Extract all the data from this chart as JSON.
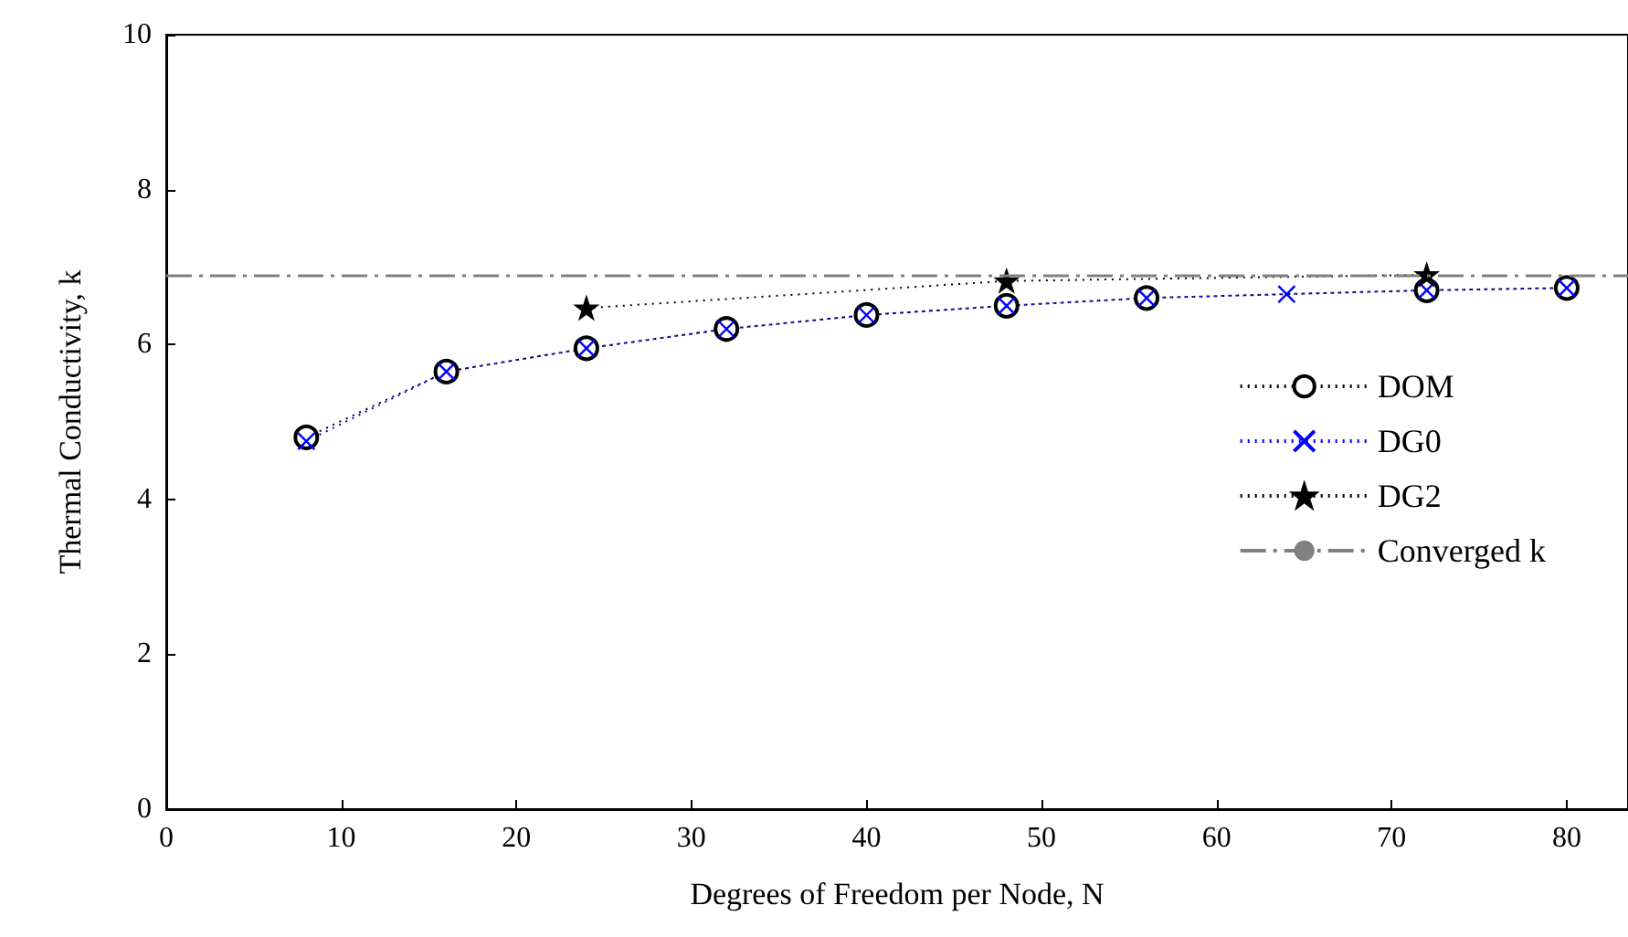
{
  "chart_data": {
    "type": "line",
    "xlabel": "Degrees of Freedom per Node, N",
    "ylabel": "Thermal Conductivity, k",
    "xlim": [
      0,
      83.5
    ],
    "xticks": [
      0,
      10,
      20,
      30,
      40,
      50,
      60,
      70,
      80
    ],
    "ylim": [
      0,
      10
    ],
    "yticks": [
      0,
      2,
      4,
      6,
      8,
      10
    ],
    "grid": false,
    "legend": "right",
    "line_style": "dotted",
    "series": [
      {
        "name": "DOM",
        "color": "#000000",
        "marker": "circle",
        "x": [
          8,
          16,
          24,
          32,
          40,
          48,
          56,
          72,
          80
        ],
        "values": [
          4.8,
          5.65,
          5.95,
          6.2,
          6.38,
          6.5,
          6.6,
          6.7,
          6.73
        ]
      },
      {
        "name": "DG0",
        "color": "#0000ff",
        "marker": "cross",
        "x": [
          8,
          16,
          24,
          32,
          40,
          48,
          56,
          64,
          72,
          80
        ],
        "values": [
          4.75,
          5.65,
          5.95,
          6.2,
          6.38,
          6.5,
          6.6,
          6.65,
          6.7,
          6.73
        ]
      },
      {
        "name": "DG2",
        "color": "#000000",
        "marker": "star",
        "x": [
          24,
          48,
          72
        ],
        "values": [
          6.47,
          6.82,
          6.9
        ]
      }
    ],
    "ref_lines": [
      {
        "axis": "y",
        "value": 6.9,
        "label": "Converged k",
        "color": "#808080",
        "line_style": "dashed"
      }
    ]
  }
}
